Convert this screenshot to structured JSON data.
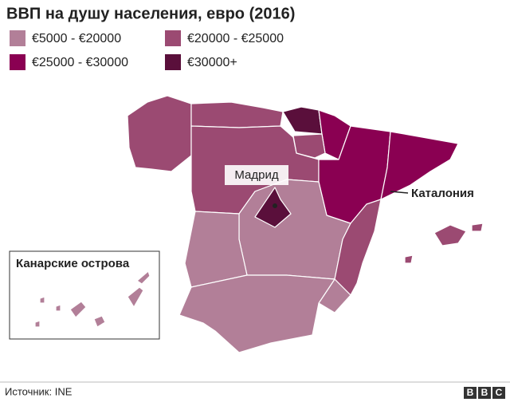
{
  "header": {
    "title": "ВВП на душу населения, евро (2016)"
  },
  "legend": {
    "items": [
      {
        "label": "€5000 - €20000",
        "color": "#b27f98"
      },
      {
        "label": "€20000 - €25000",
        "color": "#9b4a72"
      },
      {
        "label": "€25000 - €30000",
        "color": "#8a0052"
      },
      {
        "label": "€30000+",
        "color": "#5a0f3b"
      }
    ]
  },
  "labels": {
    "madrid": "Мадрид",
    "catalonia": "Каталония",
    "canary_islands": "Канарские острова"
  },
  "footer": {
    "source": "Источник: INE",
    "logo": [
      "B",
      "B",
      "C"
    ]
  }
}
